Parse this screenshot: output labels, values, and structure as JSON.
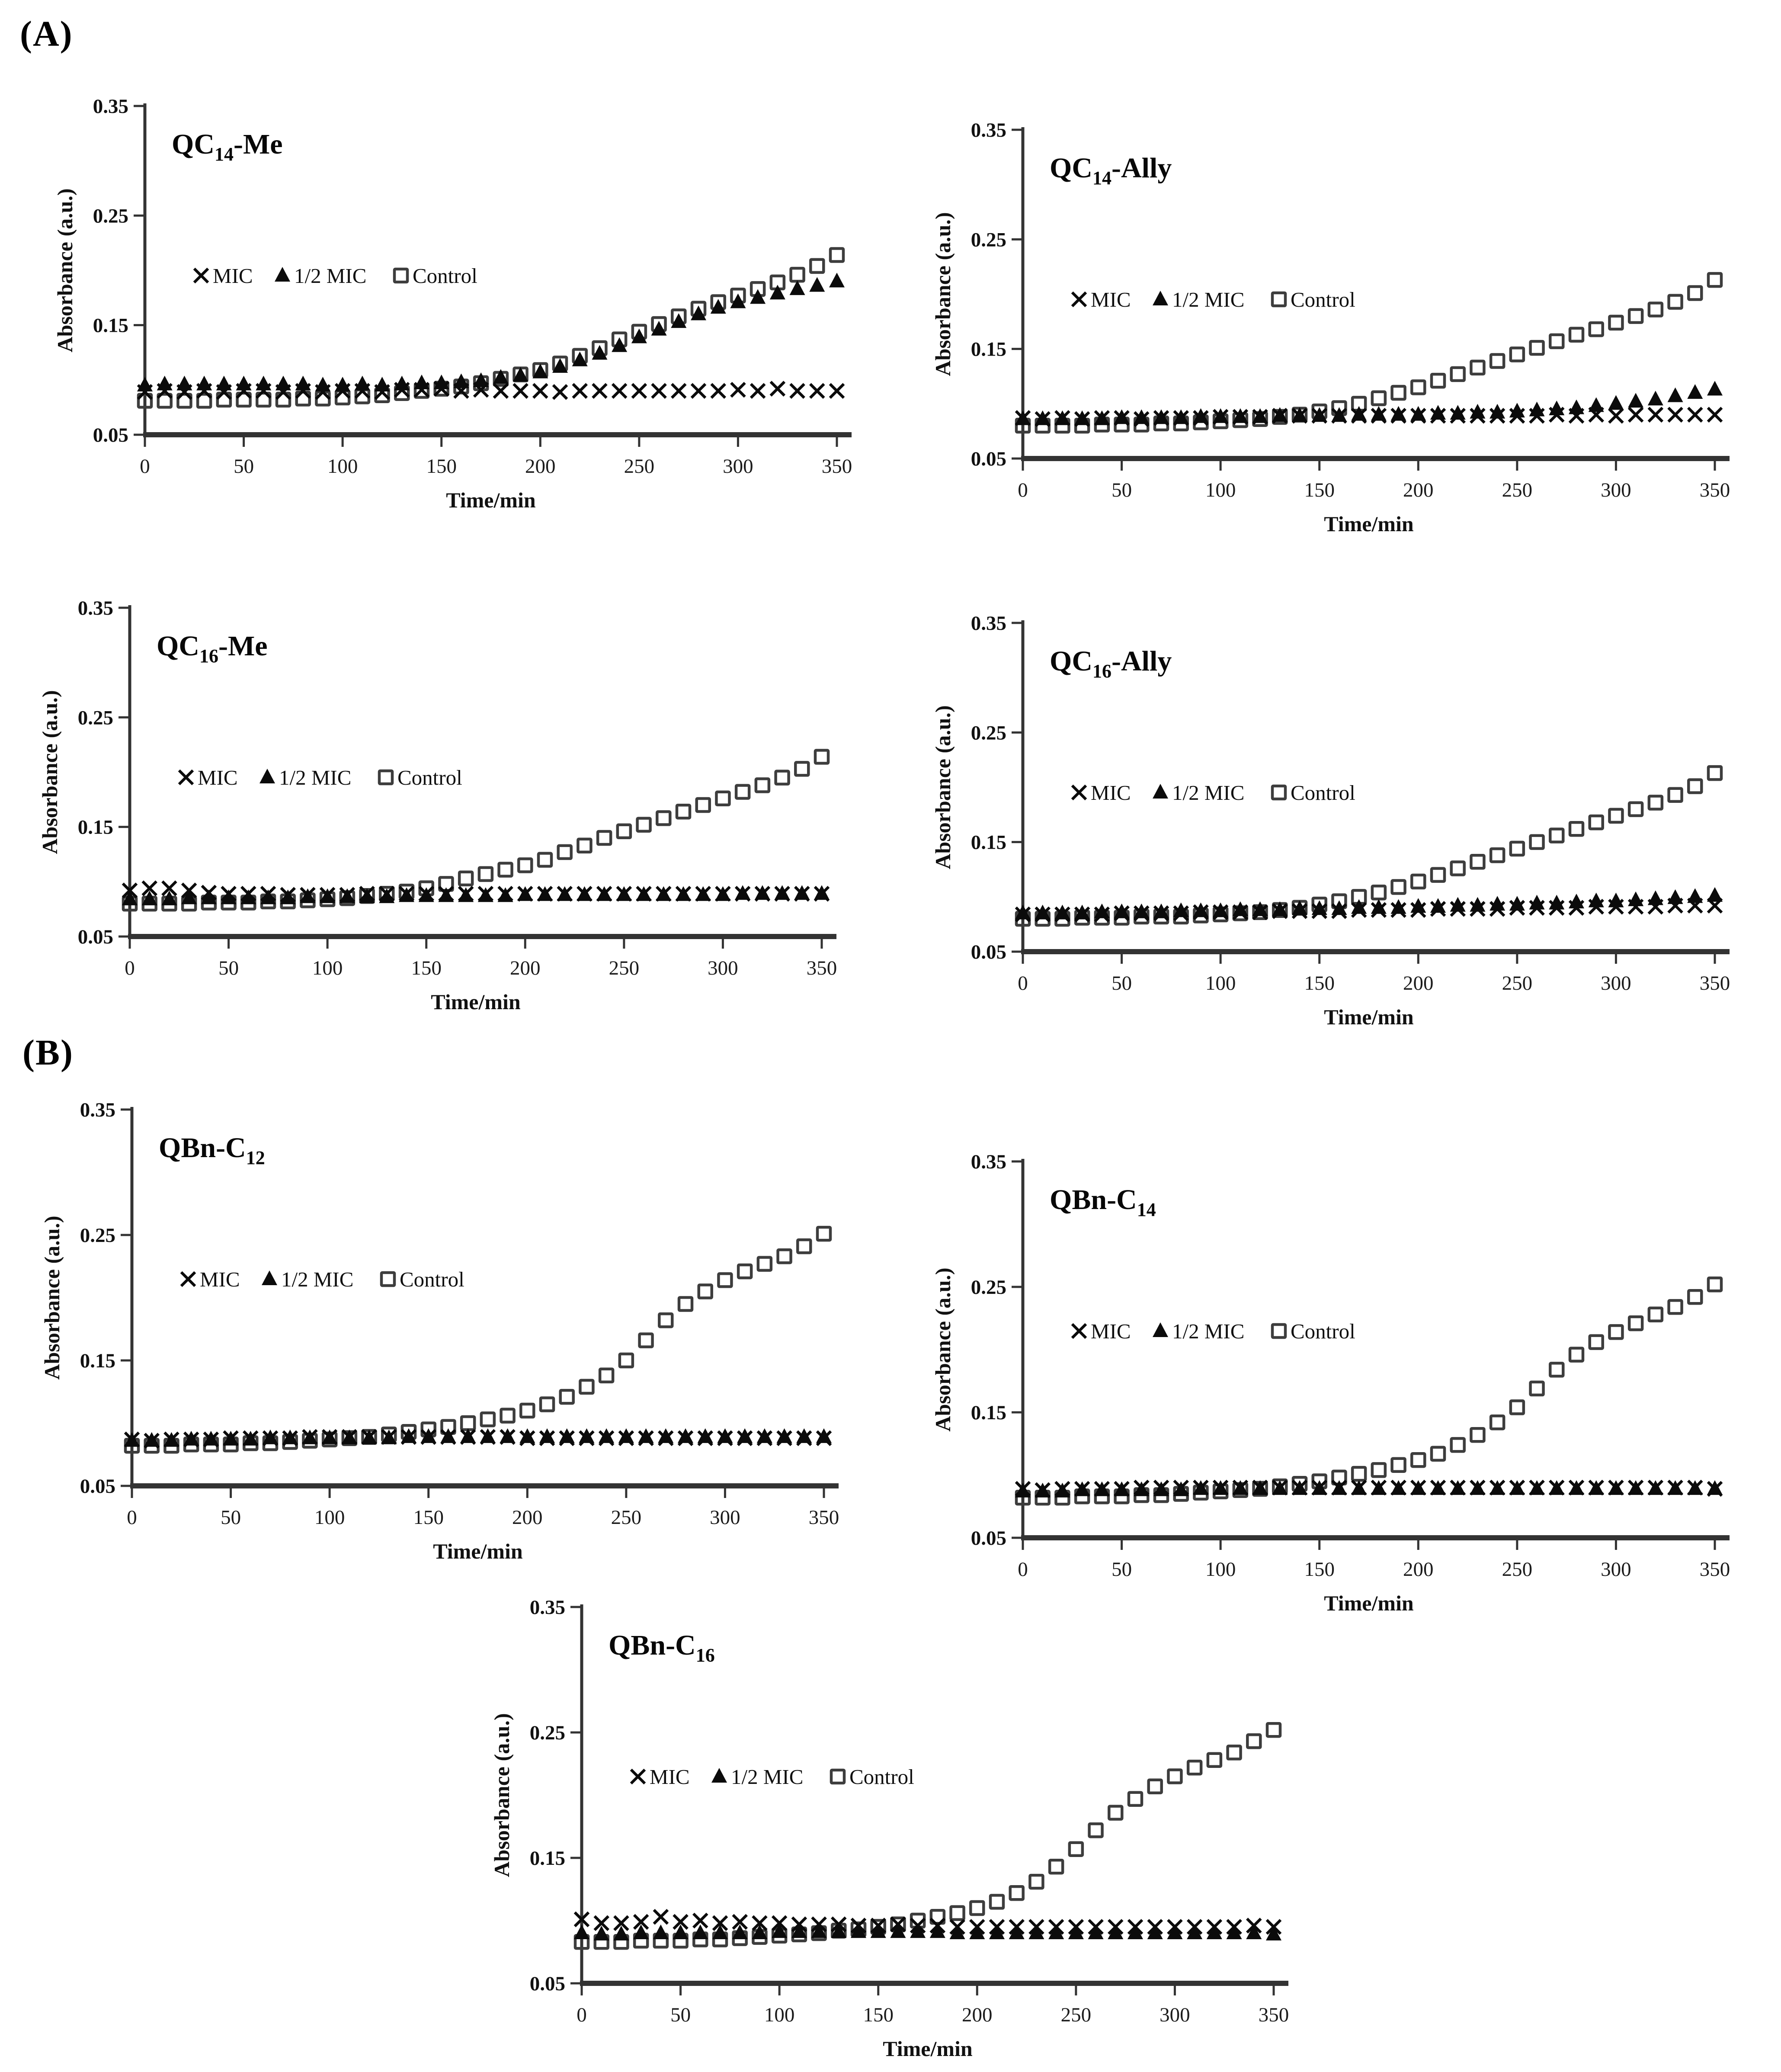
{
  "panels": {
    "a": "(A)",
    "b": "(B)"
  },
  "axes": {
    "x_label": "Time/min",
    "y_label": "Absorbance (a.u.)",
    "x_ticks": [
      0,
      50,
      100,
      150,
      200,
      250,
      300,
      350
    ],
    "y_ticks": [
      0.35,
      0.25,
      0.15,
      0.05
    ],
    "x_range": [
      0,
      350
    ],
    "y_range": [
      0.05,
      0.35
    ],
    "grid": false
  },
  "legend": {
    "position": "inside-top-left",
    "items": [
      {
        "marker": "cross",
        "label": "MIC"
      },
      {
        "marker": "triangle",
        "label": "1/2 MIC"
      },
      {
        "marker": "square",
        "label": "Control"
      }
    ]
  },
  "colors": {
    "marker": "#0b0b0b",
    "square_stroke": "#3d3d3d",
    "axis": "#333333",
    "background": "#ffffff"
  },
  "x_values": [
    0,
    10,
    20,
    30,
    40,
    50,
    60,
    70,
    80,
    90,
    100,
    110,
    120,
    130,
    140,
    150,
    160,
    170,
    180,
    190,
    200,
    210,
    220,
    230,
    240,
    250,
    260,
    270,
    280,
    290,
    300,
    310,
    320,
    330,
    340,
    350
  ],
  "chart_data": [
    {
      "id": "qc14-me",
      "panel": "A",
      "type": "scatter",
      "title": {
        "pre": "QC",
        "sub": "14",
        "post": "-Me"
      },
      "xlabel": "Time/min",
      "ylabel": "Absorbance (a.u.)",
      "series": [
        {
          "name": "MIC",
          "marker": "cross",
          "values": [
            0.089,
            0.09,
            0.089,
            0.09,
            0.089,
            0.09,
            0.09,
            0.089,
            0.09,
            0.089,
            0.09,
            0.09,
            0.089,
            0.091,
            0.091,
            0.092,
            0.09,
            0.091,
            0.09,
            0.09,
            0.09,
            0.089,
            0.09,
            0.09,
            0.09,
            0.09,
            0.09,
            0.09,
            0.09,
            0.09,
            0.091,
            0.09,
            0.092,
            0.09,
            0.09,
            0.09
          ]
        },
        {
          "name": "1/2 MIC",
          "marker": "triangle",
          "values": [
            0.095,
            0.096,
            0.096,
            0.096,
            0.096,
            0.096,
            0.096,
            0.096,
            0.096,
            0.095,
            0.095,
            0.096,
            0.095,
            0.096,
            0.097,
            0.097,
            0.098,
            0.099,
            0.102,
            0.104,
            0.107,
            0.112,
            0.118,
            0.124,
            0.131,
            0.139,
            0.146,
            0.153,
            0.16,
            0.166,
            0.171,
            0.175,
            0.179,
            0.183,
            0.186,
            0.19
          ]
        },
        {
          "name": "Control",
          "marker": "square",
          "values": [
            0.081,
            0.081,
            0.081,
            0.081,
            0.082,
            0.082,
            0.082,
            0.082,
            0.083,
            0.083,
            0.084,
            0.085,
            0.086,
            0.088,
            0.09,
            0.092,
            0.094,
            0.097,
            0.101,
            0.105,
            0.109,
            0.115,
            0.122,
            0.129,
            0.137,
            0.144,
            0.151,
            0.158,
            0.165,
            0.171,
            0.177,
            0.183,
            0.189,
            0.196,
            0.204,
            0.214
          ]
        }
      ]
    },
    {
      "id": "qc14-ally",
      "panel": "A",
      "type": "scatter",
      "title": {
        "pre": "QC",
        "sub": "14",
        "post": "-Ally"
      },
      "xlabel": "Time/min",
      "ylabel": "Absorbance (a.u.)",
      "series": [
        {
          "name": "MIC",
          "marker": "cross",
          "values": [
            0.087,
            0.086,
            0.087,
            0.086,
            0.087,
            0.087,
            0.086,
            0.087,
            0.087,
            0.087,
            0.088,
            0.088,
            0.088,
            0.089,
            0.089,
            0.089,
            0.089,
            0.089,
            0.089,
            0.089,
            0.089,
            0.089,
            0.089,
            0.089,
            0.089,
            0.089,
            0.089,
            0.09,
            0.089,
            0.09,
            0.089,
            0.09,
            0.09,
            0.09,
            0.09,
            0.09
          ]
        },
        {
          "name": "1/2 MIC",
          "marker": "triangle",
          "values": [
            0.086,
            0.086,
            0.086,
            0.086,
            0.086,
            0.087,
            0.087,
            0.087,
            0.087,
            0.088,
            0.088,
            0.088,
            0.088,
            0.089,
            0.089,
            0.089,
            0.089,
            0.09,
            0.09,
            0.09,
            0.09,
            0.091,
            0.091,
            0.092,
            0.092,
            0.093,
            0.094,
            0.095,
            0.096,
            0.098,
            0.1,
            0.102,
            0.104,
            0.107,
            0.11,
            0.113
          ]
        },
        {
          "name": "Control",
          "marker": "square",
          "values": [
            0.08,
            0.08,
            0.08,
            0.08,
            0.081,
            0.081,
            0.081,
            0.082,
            0.082,
            0.083,
            0.084,
            0.085,
            0.086,
            0.088,
            0.09,
            0.093,
            0.096,
            0.1,
            0.105,
            0.11,
            0.115,
            0.121,
            0.127,
            0.133,
            0.139,
            0.145,
            0.151,
            0.157,
            0.163,
            0.168,
            0.174,
            0.18,
            0.186,
            0.193,
            0.201,
            0.213
          ]
        }
      ]
    },
    {
      "id": "qc16-me",
      "panel": "A",
      "type": "scatter",
      "title": {
        "pre": "QC",
        "sub": "16",
        "post": "-Me"
      },
      "xlabel": "Time/min",
      "ylabel": "Absorbance (a.u.)",
      "series": [
        {
          "name": "MIC",
          "marker": "cross",
          "values": [
            0.092,
            0.094,
            0.094,
            0.092,
            0.09,
            0.089,
            0.089,
            0.089,
            0.088,
            0.088,
            0.088,
            0.088,
            0.089,
            0.089,
            0.089,
            0.089,
            0.089,
            0.089,
            0.089,
            0.089,
            0.089,
            0.089,
            0.089,
            0.089,
            0.089,
            0.089,
            0.089,
            0.089,
            0.089,
            0.089,
            0.089,
            0.089,
            0.089,
            0.089,
            0.089,
            0.089
          ]
        },
        {
          "name": "1/2 MIC",
          "marker": "triangle",
          "values": [
            0.084,
            0.084,
            0.084,
            0.085,
            0.085,
            0.085,
            0.085,
            0.085,
            0.085,
            0.086,
            0.086,
            0.086,
            0.086,
            0.086,
            0.087,
            0.087,
            0.087,
            0.087,
            0.087,
            0.087,
            0.088,
            0.088,
            0.088,
            0.088,
            0.088,
            0.088,
            0.088,
            0.088,
            0.088,
            0.088,
            0.088,
            0.089,
            0.089,
            0.089,
            0.089,
            0.089
          ]
        },
        {
          "name": "Control",
          "marker": "square",
          "values": [
            0.08,
            0.08,
            0.08,
            0.08,
            0.081,
            0.081,
            0.081,
            0.082,
            0.082,
            0.083,
            0.084,
            0.085,
            0.087,
            0.089,
            0.091,
            0.094,
            0.098,
            0.103,
            0.107,
            0.111,
            0.115,
            0.12,
            0.127,
            0.133,
            0.14,
            0.146,
            0.152,
            0.158,
            0.164,
            0.17,
            0.176,
            0.182,
            0.188,
            0.195,
            0.203,
            0.214
          ]
        }
      ]
    },
    {
      "id": "qc16-ally",
      "panel": "A",
      "type": "scatter",
      "title": {
        "pre": "QC",
        "sub": "16",
        "post": "-Ally"
      },
      "xlabel": "Time/min",
      "ylabel": "Absorbance (a.u.)",
      "series": [
        {
          "name": "MIC",
          "marker": "cross",
          "values": [
            0.084,
            0.084,
            0.084,
            0.084,
            0.084,
            0.085,
            0.085,
            0.085,
            0.085,
            0.086,
            0.086,
            0.086,
            0.086,
            0.087,
            0.087,
            0.087,
            0.087,
            0.088,
            0.088,
            0.088,
            0.088,
            0.089,
            0.089,
            0.089,
            0.089,
            0.09,
            0.09,
            0.09,
            0.09,
            0.091,
            0.091,
            0.091,
            0.091,
            0.092,
            0.092,
            0.092
          ]
        },
        {
          "name": "1/2 MIC",
          "marker": "triangle",
          "values": [
            0.085,
            0.085,
            0.085,
            0.085,
            0.086,
            0.086,
            0.086,
            0.086,
            0.087,
            0.087,
            0.087,
            0.088,
            0.088,
            0.088,
            0.089,
            0.089,
            0.089,
            0.09,
            0.09,
            0.09,
            0.091,
            0.091,
            0.092,
            0.092,
            0.093,
            0.093,
            0.094,
            0.094,
            0.095,
            0.096,
            0.096,
            0.097,
            0.098,
            0.099,
            0.1,
            0.101
          ]
        },
        {
          "name": "Control",
          "marker": "square",
          "values": [
            0.08,
            0.08,
            0.08,
            0.081,
            0.081,
            0.081,
            0.082,
            0.082,
            0.082,
            0.083,
            0.084,
            0.085,
            0.086,
            0.088,
            0.09,
            0.093,
            0.096,
            0.1,
            0.104,
            0.109,
            0.114,
            0.12,
            0.126,
            0.132,
            0.138,
            0.144,
            0.15,
            0.156,
            0.162,
            0.168,
            0.174,
            0.18,
            0.186,
            0.193,
            0.201,
            0.213
          ]
        }
      ]
    },
    {
      "id": "qbn-c12",
      "panel": "B",
      "type": "scatter",
      "title": {
        "pre": "QBn-C",
        "sub": "12",
        "post": ""
      },
      "xlabel": "Time/min",
      "ylabel": "Absorbance (a.u.)",
      "series": [
        {
          "name": "MIC",
          "marker": "cross",
          "values": [
            0.087,
            0.086,
            0.087,
            0.087,
            0.087,
            0.088,
            0.088,
            0.088,
            0.088,
            0.089,
            0.089,
            0.089,
            0.089,
            0.089,
            0.089,
            0.089,
            0.089,
            0.089,
            0.089,
            0.089,
            0.088,
            0.088,
            0.088,
            0.088,
            0.088,
            0.088,
            0.088,
            0.088,
            0.088,
            0.088,
            0.088,
            0.088,
            0.088,
            0.088,
            0.088,
            0.088
          ]
        },
        {
          "name": "1/2 MIC",
          "marker": "triangle",
          "values": [
            0.086,
            0.086,
            0.086,
            0.087,
            0.087,
            0.087,
            0.087,
            0.088,
            0.088,
            0.088,
            0.088,
            0.088,
            0.088,
            0.088,
            0.089,
            0.089,
            0.089,
            0.089,
            0.089,
            0.089,
            0.089,
            0.089,
            0.089,
            0.089,
            0.089,
            0.089,
            0.089,
            0.089,
            0.089,
            0.089,
            0.089,
            0.089,
            0.089,
            0.089,
            0.089,
            0.089
          ]
        },
        {
          "name": "Control",
          "marker": "square",
          "values": [
            0.082,
            0.082,
            0.082,
            0.083,
            0.083,
            0.083,
            0.084,
            0.084,
            0.085,
            0.086,
            0.087,
            0.088,
            0.089,
            0.091,
            0.093,
            0.095,
            0.097,
            0.1,
            0.103,
            0.106,
            0.11,
            0.115,
            0.121,
            0.129,
            0.138,
            0.15,
            0.166,
            0.182,
            0.195,
            0.205,
            0.214,
            0.221,
            0.227,
            0.233,
            0.241,
            0.251
          ]
        }
      ]
    },
    {
      "id": "qbn-c14",
      "panel": "B",
      "type": "scatter",
      "title": {
        "pre": "QBn-C",
        "sub": "14",
        "post": ""
      },
      "xlabel": "Time/min",
      "ylabel": "Absorbance (a.u.)",
      "series": [
        {
          "name": "MIC",
          "marker": "cross",
          "values": [
            0.089,
            0.088,
            0.089,
            0.089,
            0.089,
            0.089,
            0.09,
            0.09,
            0.09,
            0.09,
            0.09,
            0.09,
            0.09,
            0.09,
            0.09,
            0.09,
            0.09,
            0.09,
            0.09,
            0.09,
            0.09,
            0.09,
            0.09,
            0.09,
            0.09,
            0.09,
            0.09,
            0.09,
            0.09,
            0.09,
            0.09,
            0.09,
            0.09,
            0.09,
            0.09,
            0.089
          ]
        },
        {
          "name": "1/2 MIC",
          "marker": "triangle",
          "values": [
            0.087,
            0.087,
            0.087,
            0.088,
            0.088,
            0.088,
            0.088,
            0.088,
            0.088,
            0.089,
            0.089,
            0.089,
            0.089,
            0.089,
            0.089,
            0.089,
            0.089,
            0.089,
            0.089,
            0.089,
            0.089,
            0.089,
            0.089,
            0.089,
            0.089,
            0.089,
            0.089,
            0.089,
            0.089,
            0.089,
            0.089,
            0.089,
            0.089,
            0.089,
            0.089,
            0.089
          ]
        },
        {
          "name": "Control",
          "marker": "square",
          "values": [
            0.082,
            0.082,
            0.082,
            0.083,
            0.083,
            0.083,
            0.084,
            0.084,
            0.085,
            0.086,
            0.087,
            0.088,
            0.089,
            0.091,
            0.093,
            0.095,
            0.098,
            0.101,
            0.104,
            0.108,
            0.112,
            0.117,
            0.124,
            0.132,
            0.142,
            0.154,
            0.169,
            0.184,
            0.196,
            0.206,
            0.214,
            0.221,
            0.228,
            0.234,
            0.242,
            0.252
          ]
        }
      ]
    },
    {
      "id": "qbn-c16",
      "panel": "B",
      "type": "scatter",
      "title": {
        "pre": "QBn-C",
        "sub": "16",
        "post": ""
      },
      "xlabel": "Time/min",
      "ylabel": "Absorbance (a.u.)",
      "series": [
        {
          "name": "MIC",
          "marker": "cross",
          "values": [
            0.101,
            0.098,
            0.098,
            0.099,
            0.103,
            0.099,
            0.1,
            0.098,
            0.099,
            0.098,
            0.098,
            0.097,
            0.097,
            0.097,
            0.096,
            0.096,
            0.097,
            0.096,
            0.096,
            0.095,
            0.095,
            0.095,
            0.095,
            0.095,
            0.095,
            0.095,
            0.095,
            0.095,
            0.095,
            0.095,
            0.095,
            0.095,
            0.095,
            0.095,
            0.096,
            0.095
          ]
        },
        {
          "name": "1/2 MIC",
          "marker": "triangle",
          "values": [
            0.09,
            0.089,
            0.089,
            0.09,
            0.09,
            0.09,
            0.09,
            0.09,
            0.09,
            0.09,
            0.091,
            0.091,
            0.091,
            0.091,
            0.091,
            0.091,
            0.091,
            0.091,
            0.091,
            0.09,
            0.09,
            0.09,
            0.09,
            0.09,
            0.09,
            0.09,
            0.09,
            0.09,
            0.09,
            0.09,
            0.09,
            0.09,
            0.09,
            0.09,
            0.09,
            0.089
          ]
        },
        {
          "name": "Control",
          "marker": "square",
          "values": [
            0.083,
            0.083,
            0.083,
            0.084,
            0.084,
            0.084,
            0.085,
            0.085,
            0.086,
            0.087,
            0.088,
            0.089,
            0.09,
            0.092,
            0.093,
            0.095,
            0.097,
            0.1,
            0.103,
            0.106,
            0.11,
            0.115,
            0.122,
            0.131,
            0.143,
            0.157,
            0.172,
            0.186,
            0.197,
            0.207,
            0.215,
            0.222,
            0.228,
            0.234,
            0.243,
            0.252
          ]
        }
      ]
    }
  ]
}
